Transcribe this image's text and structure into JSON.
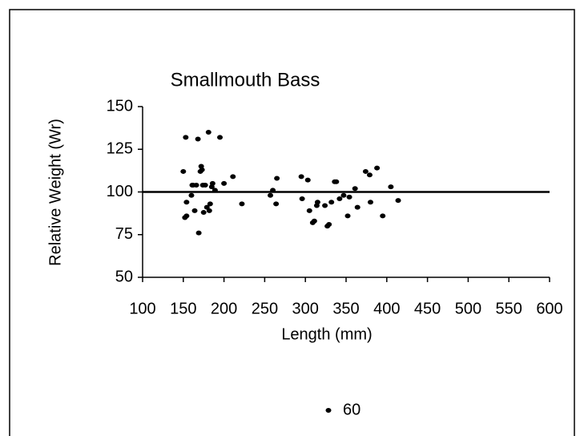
{
  "chart_data": {
    "type": "scatter",
    "title": "Smallmouth Bass",
    "xlabel": "Length (mm)",
    "ylabel": "Relative Weight (Wr)",
    "xlim": [
      100,
      600
    ],
    "xticks": [
      100,
      150,
      200,
      250,
      300,
      350,
      400,
      450,
      500,
      550,
      600
    ],
    "ylim": [
      50,
      150
    ],
    "yticks": [
      50,
      75,
      100,
      125,
      150
    ],
    "reference_line": 100,
    "series": [
      {
        "name": "60",
        "color": "#000000",
        "x": [
          150,
          153,
          154,
          152,
          154,
          160,
          161,
          162,
          164,
          166,
          168,
          169,
          171,
          172,
          173,
          174,
          175,
          177,
          179,
          181,
          182,
          183,
          185,
          186,
          189,
          195,
          200,
          211,
          222,
          257,
          260,
          264,
          265,
          295,
          296,
          303,
          305,
          309,
          311,
          314,
          315,
          324,
          327,
          329,
          332,
          336,
          338,
          342,
          347,
          352,
          354,
          361,
          364,
          374,
          379,
          380,
          388,
          395,
          405,
          414
        ],
        "values": [
          112,
          132,
          94,
          85,
          86,
          98,
          104,
          104,
          89,
          104,
          131,
          76,
          112,
          115,
          113,
          104,
          88,
          104,
          91,
          135,
          89,
          93,
          103,
          105,
          101,
          132,
          105,
          109,
          93,
          98,
          101,
          93,
          108,
          109,
          96,
          107,
          89,
          82,
          83,
          92,
          94,
          92,
          80,
          81,
          94,
          106,
          106,
          96,
          98,
          86,
          97,
          102,
          91,
          112,
          110,
          94,
          114,
          86,
          103,
          95
        ]
      }
    ]
  }
}
